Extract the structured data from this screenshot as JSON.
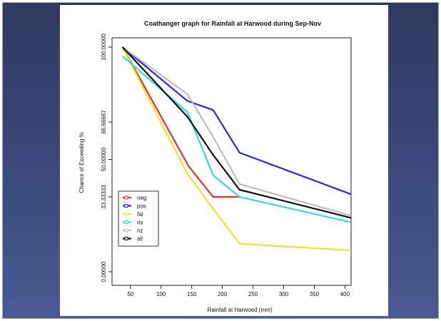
{
  "chart_data": {
    "type": "line",
    "title": "Coathanger graph for  Rainfall  at Harwood  during  Sep-Nov",
    "xlabel": "Rainfall at Harwood (mm)",
    "ylabel": "Chance of Exceeding %",
    "xlim": [
      20,
      410
    ],
    "ylim": [
      0,
      100
    ],
    "xticks": [
      50,
      100,
      150,
      200,
      250,
      300,
      350,
      400
    ],
    "yticks": [
      0,
      33.33333,
      50,
      66.66667,
      100
    ],
    "ytick_labels": [
      "0.00000",
      "33.33333",
      "50.00000",
      "66.66667",
      "100.00000"
    ],
    "grid": false,
    "legend_position": "bottom-left",
    "series": [
      {
        "name": "neg",
        "color": "#e53030",
        "x": [
          37,
          145,
          185,
          228
        ],
        "y": [
          100,
          47,
          33.3,
          33.3
        ]
      },
      {
        "name": "pos",
        "color": "#2a2ad6",
        "x": [
          37,
          143,
          185,
          228,
          410
        ],
        "y": [
          100,
          76,
          72,
          53,
          34.5
        ]
      },
      {
        "name": "fal",
        "color": "#f2e12a",
        "x": [
          37,
          142,
          185,
          228,
          410
        ],
        "y": [
          100,
          44,
          28,
          12.5,
          9.5
        ]
      },
      {
        "name": "ris",
        "color": "#35d9e0",
        "x": [
          37,
          143,
          185,
          228,
          410
        ],
        "y": [
          96,
          71,
          43,
          33.3,
          22
        ]
      },
      {
        "name": "nz",
        "color": "#bdbdbd",
        "x": [
          37,
          143,
          185,
          228,
          410
        ],
        "y": [
          100,
          79,
          60,
          39,
          25
        ]
      },
      {
        "name": "all",
        "color": "#111111",
        "x": [
          37,
          143,
          185,
          228,
          410
        ],
        "y": [
          100,
          69,
          52,
          36.5,
          24
        ]
      }
    ]
  }
}
